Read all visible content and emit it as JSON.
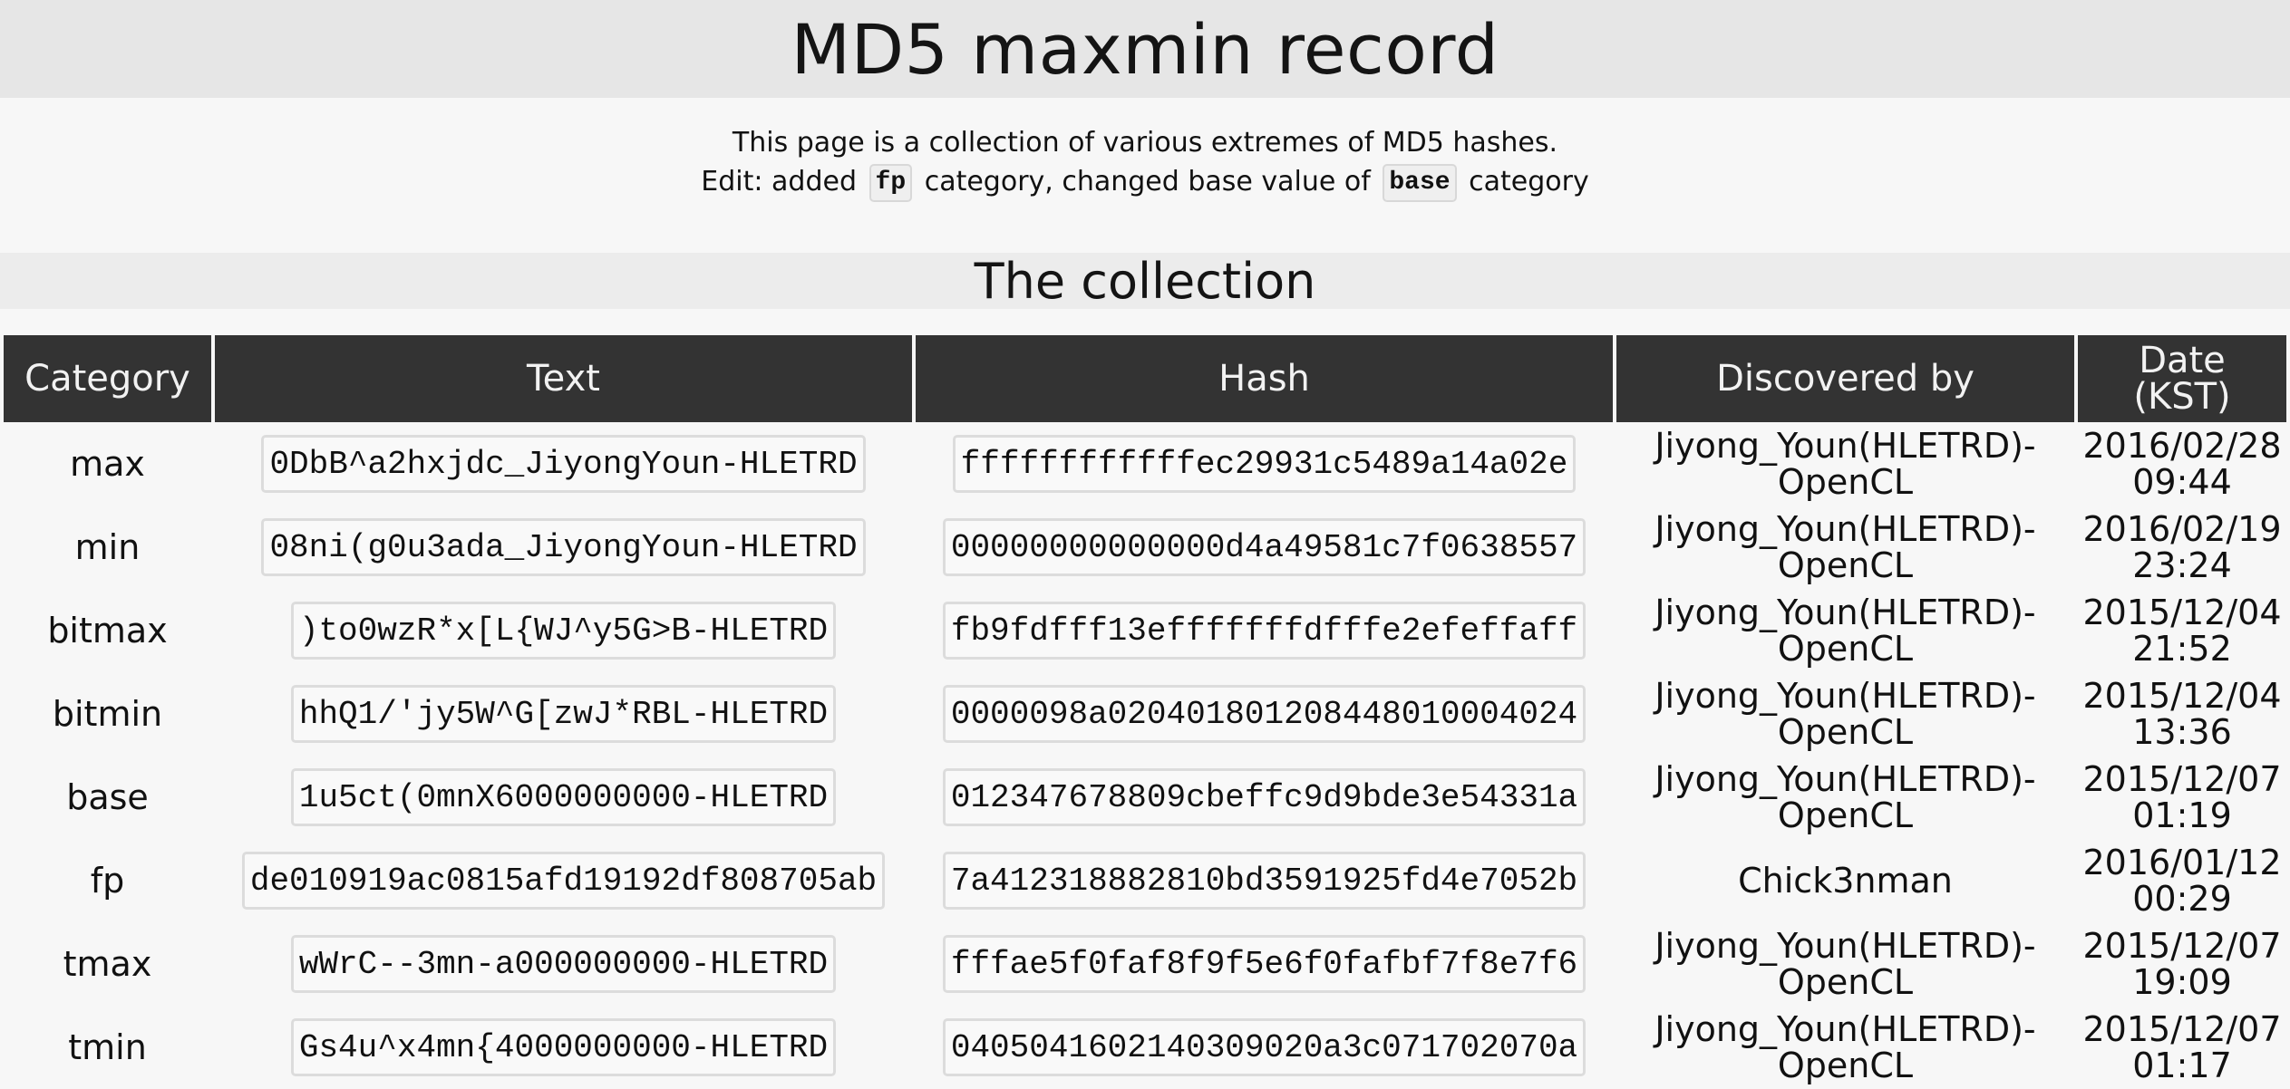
{
  "header": {
    "title": "MD5 maxmin record"
  },
  "intro": {
    "line1": "This page is a collection of various extremes of MD5 hashes.",
    "line2_part1": "Edit: added",
    "line2_code1": "fp",
    "line2_part2": "category, changed base value of",
    "line2_code2": "base",
    "line2_part3": "category"
  },
  "section": {
    "title": "The collection"
  },
  "table": {
    "headers": {
      "category": "Category",
      "text": "Text",
      "hash": "Hash",
      "discovered_by": "Discovered by",
      "date_line1": "Date",
      "date_line2": "(KST)"
    },
    "rows": [
      {
        "category": "max",
        "text": "0DbB^a2hxjdc_JiyongYoun-HLETRD",
        "hash": "ffffffffffffec29931c5489a14a02e",
        "by_line1": "Jiyong_Youn(HLETRD)-",
        "by_line2": "OpenCL",
        "date": "2016/02/28",
        "time": "09:44"
      },
      {
        "category": "min",
        "text": "08ni(g0u3ada_JiyongYoun-HLETRD",
        "hash": "00000000000000d4a49581c7f0638557",
        "by_line1": "Jiyong_Youn(HLETRD)-",
        "by_line2": "OpenCL",
        "date": "2016/02/19",
        "time": "23:24"
      },
      {
        "category": "bitmax",
        "text": ")to0wzR*x[L{WJ^y5G>B-HLETRD",
        "hash": "fb9fdfff13efffffffdfffe2efeffaff",
        "by_line1": "Jiyong_Youn(HLETRD)-",
        "by_line2": "OpenCL",
        "date": "2015/12/04",
        "time": "21:52"
      },
      {
        "category": "bitmin",
        "text": "hhQ1/'jy5W^G[zwJ*RBL-HLETRD",
        "hash": "0000098a020401801208448010004024",
        "by_line1": "Jiyong_Youn(HLETRD)-",
        "by_line2": "OpenCL",
        "date": "2015/12/04",
        "time": "13:36"
      },
      {
        "category": "base",
        "text": "1u5ct(0mnX6000000000-HLETRD",
        "hash": "012347678809cbeffc9d9bde3e54331a",
        "by_line1": "Jiyong_Youn(HLETRD)-",
        "by_line2": "OpenCL",
        "date": "2015/12/07",
        "time": "01:19"
      },
      {
        "category": "fp",
        "text": "de010919ac0815afd19192df808705ab",
        "hash": "7a412318882810bd3591925fd4e7052b",
        "by_line1": "Chick3nman",
        "by_line2": "",
        "date": "2016/01/12",
        "time": "00:29"
      },
      {
        "category": "tmax",
        "text": "wWrC--3mn-a000000000-HLETRD",
        "hash": "fffae5f0faf8f9f5e6f0fafbf7f8e7f6",
        "by_line1": "Jiyong_Youn(HLETRD)-",
        "by_line2": "OpenCL",
        "date": "2015/12/07",
        "time": "19:09"
      },
      {
        "category": "tmin",
        "text": "Gs4u^x4mn{4000000000-HLETRD",
        "hash": "0405041602140309020a3c071702070a",
        "by_line1": "Jiyong_Youn(HLETRD)-",
        "by_line2": "OpenCL",
        "date": "2015/12/07",
        "time": "01:17"
      }
    ]
  }
}
